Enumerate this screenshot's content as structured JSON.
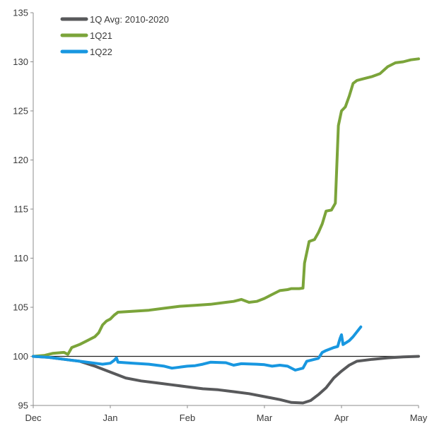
{
  "chart_data": {
    "type": "line",
    "title": "",
    "xlabel": "",
    "ylabel": "",
    "x_ticks": [
      {
        "label": "Dec",
        "x": 0
      },
      {
        "label": "Jan",
        "x": 1
      },
      {
        "label": "Feb",
        "x": 2
      },
      {
        "label": "Mar",
        "x": 3
      },
      {
        "label": "Apr",
        "x": 4
      },
      {
        "label": "May",
        "x": 5
      }
    ],
    "xlim": [
      0,
      5
    ],
    "ylim": [
      95,
      135
    ],
    "y_ticks": [
      95,
      100,
      105,
      110,
      115,
      120,
      125,
      130,
      135
    ],
    "baseline": 100,
    "grid": false,
    "legend_position": "top-left",
    "series": [
      {
        "name": "1Q Avg: 2010-2020",
        "color": "#58595b",
        "points": [
          [
            0,
            100
          ],
          [
            0.2,
            99.9
          ],
          [
            0.4,
            99.7
          ],
          [
            0.6,
            99.5
          ],
          [
            0.8,
            99.0
          ],
          [
            1.0,
            98.4
          ],
          [
            1.2,
            97.8
          ],
          [
            1.4,
            97.5
          ],
          [
            1.6,
            97.3
          ],
          [
            1.8,
            97.1
          ],
          [
            2.0,
            96.9
          ],
          [
            2.2,
            96.7
          ],
          [
            2.4,
            96.6
          ],
          [
            2.6,
            96.4
          ],
          [
            2.8,
            96.2
          ],
          [
            3.0,
            95.9
          ],
          [
            3.2,
            95.6
          ],
          [
            3.35,
            95.3
          ],
          [
            3.5,
            95.25
          ],
          [
            3.6,
            95.5
          ],
          [
            3.7,
            96.1
          ],
          [
            3.8,
            96.8
          ],
          [
            3.9,
            97.8
          ],
          [
            4.0,
            98.5
          ],
          [
            4.1,
            99.1
          ],
          [
            4.2,
            99.5
          ],
          [
            4.4,
            99.7
          ],
          [
            4.6,
            99.85
          ],
          [
            4.8,
            99.95
          ],
          [
            5.0,
            100.0
          ]
        ]
      },
      {
        "name": "1Q21",
        "color": "#7ba43a",
        "points": [
          [
            0,
            100
          ],
          [
            0.15,
            100.1
          ],
          [
            0.25,
            100.3
          ],
          [
            0.4,
            100.4
          ],
          [
            0.45,
            100.2
          ],
          [
            0.5,
            100.9
          ],
          [
            0.6,
            101.2
          ],
          [
            0.7,
            101.6
          ],
          [
            0.8,
            102.0
          ],
          [
            0.85,
            102.4
          ],
          [
            0.9,
            103.2
          ],
          [
            0.95,
            103.6
          ],
          [
            1.0,
            103.8
          ],
          [
            1.05,
            104.2
          ],
          [
            1.1,
            104.5
          ],
          [
            1.3,
            104.6
          ],
          [
            1.5,
            104.7
          ],
          [
            1.7,
            104.9
          ],
          [
            1.9,
            105.1
          ],
          [
            2.1,
            105.2
          ],
          [
            2.3,
            105.3
          ],
          [
            2.5,
            105.5
          ],
          [
            2.6,
            105.6
          ],
          [
            2.7,
            105.8
          ],
          [
            2.8,
            105.5
          ],
          [
            2.9,
            105.6
          ],
          [
            3.0,
            105.9
          ],
          [
            3.1,
            106.3
          ],
          [
            3.2,
            106.7
          ],
          [
            3.3,
            106.8
          ],
          [
            3.35,
            106.9
          ],
          [
            3.45,
            106.9
          ],
          [
            3.5,
            106.95
          ],
          [
            3.52,
            109.5
          ],
          [
            3.58,
            111.7
          ],
          [
            3.65,
            111.9
          ],
          [
            3.7,
            112.6
          ],
          [
            3.75,
            113.5
          ],
          [
            3.8,
            114.8
          ],
          [
            3.87,
            114.9
          ],
          [
            3.92,
            115.6
          ],
          [
            3.96,
            123.5
          ],
          [
            4.0,
            125.0
          ],
          [
            4.05,
            125.4
          ],
          [
            4.1,
            126.5
          ],
          [
            4.15,
            127.8
          ],
          [
            4.2,
            128.1
          ],
          [
            4.3,
            128.3
          ],
          [
            4.4,
            128.5
          ],
          [
            4.5,
            128.8
          ],
          [
            4.6,
            129.5
          ],
          [
            4.7,
            129.9
          ],
          [
            4.8,
            130.0
          ],
          [
            4.9,
            130.2
          ],
          [
            5.0,
            130.3
          ]
        ]
      },
      {
        "name": "1Q22",
        "color": "#1897e0",
        "points": [
          [
            0,
            100
          ],
          [
            0.2,
            99.9
          ],
          [
            0.4,
            99.7
          ],
          [
            0.6,
            99.5
          ],
          [
            0.8,
            99.3
          ],
          [
            0.9,
            99.2
          ],
          [
            1.0,
            99.3
          ],
          [
            1.05,
            99.6
          ],
          [
            1.08,
            99.85
          ],
          [
            1.1,
            99.4
          ],
          [
            1.3,
            99.3
          ],
          [
            1.5,
            99.2
          ],
          [
            1.7,
            99.0
          ],
          [
            1.8,
            98.8
          ],
          [
            1.9,
            98.9
          ],
          [
            2.0,
            99.0
          ],
          [
            2.1,
            99.05
          ],
          [
            2.2,
            99.2
          ],
          [
            2.3,
            99.4
          ],
          [
            2.5,
            99.35
          ],
          [
            2.6,
            99.1
          ],
          [
            2.7,
            99.25
          ],
          [
            2.9,
            99.2
          ],
          [
            3.0,
            99.15
          ],
          [
            3.1,
            99.0
          ],
          [
            3.2,
            99.1
          ],
          [
            3.3,
            99.0
          ],
          [
            3.4,
            98.6
          ],
          [
            3.5,
            98.8
          ],
          [
            3.55,
            99.5
          ],
          [
            3.6,
            99.6
          ],
          [
            3.7,
            99.8
          ],
          [
            3.75,
            100.4
          ],
          [
            3.8,
            100.6
          ],
          [
            3.9,
            100.9
          ],
          [
            3.95,
            101.0
          ],
          [
            3.98,
            101.8
          ],
          [
            4.0,
            102.2
          ],
          [
            4.02,
            101.2
          ],
          [
            4.1,
            101.6
          ],
          [
            4.15,
            102.0
          ],
          [
            4.2,
            102.5
          ],
          [
            4.25,
            103.0
          ]
        ]
      }
    ]
  }
}
